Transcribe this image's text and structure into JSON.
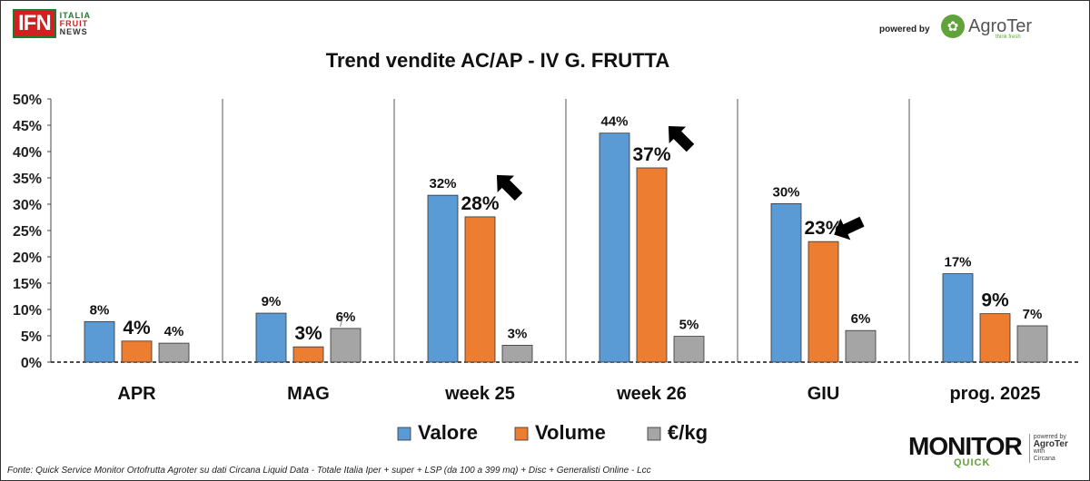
{
  "header": {
    "logo_letters": "IFN",
    "logo_word1": "ITALIA",
    "logo_word2": "FRUIT",
    "logo_word3": "NEWS",
    "powered_by": "powered by",
    "partner_name": "AgroTer",
    "partner_tagline": "think fresh",
    "leaf_icon": "leaf-icon"
  },
  "footer": {
    "source": "Fonte: Quick Service Monitor Ortofrutta Agroter su dati Circana Liquid Data - Totale Italia Iper + super + LSP (da 100 a 399 mq) + Disc + Generalisti Online - Lcc",
    "monitor_word": "MONITOR",
    "quick_word": "QUICK",
    "side_line1": "powered by",
    "side_line2": "AgroTer",
    "side_line3": "with",
    "side_line4": "Circana"
  },
  "colors": {
    "valore": "#5b9bd5",
    "volume": "#ed7d31",
    "prezzo": "#a5a5a5",
    "arrow": "#000000"
  },
  "chart_data": {
    "type": "bar",
    "title": "Trend vendite AC/AP - IV G. FRUTTA",
    "categories": [
      "APR",
      "MAG",
      "week 25",
      "week 26",
      "GIU",
      "prog. 2025"
    ],
    "ylim": [
      0,
      50
    ],
    "yticks": [
      "0%",
      "5%",
      "10%",
      "15%",
      "20%",
      "25%",
      "30%",
      "35%",
      "40%",
      "45%",
      "50%"
    ],
    "series": [
      {
        "name": "Valore",
        "values": [
          7.7,
          9.3,
          31.7,
          43.5,
          30.1,
          16.8
        ],
        "labels": [
          "8%",
          "9%",
          "32%",
          "44%",
          "30%",
          "17%"
        ]
      },
      {
        "name": "Volume",
        "values": [
          4.0,
          2.9,
          27.6,
          36.9,
          22.9,
          9.2
        ],
        "labels": [
          "4%",
          "3%",
          "28%",
          "37%",
          "23%",
          "9%"
        ]
      },
      {
        "name": "€/kg",
        "values": [
          3.6,
          6.4,
          3.2,
          4.9,
          6.0,
          6.9
        ],
        "labels": [
          "4%",
          "6%",
          "3%",
          "5%",
          "6%",
          "7%"
        ]
      }
    ],
    "legend_position": "bottom",
    "arrows_on": [
      "week 25",
      "week 26",
      "GIU"
    ]
  }
}
